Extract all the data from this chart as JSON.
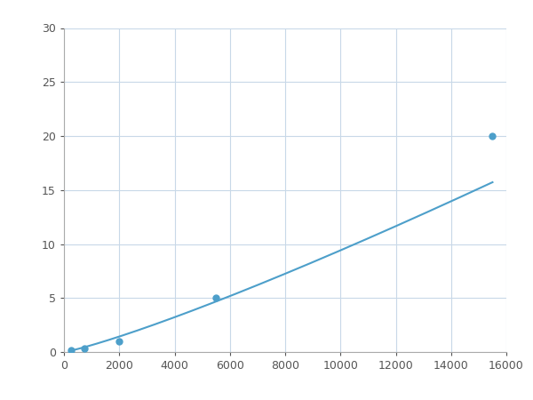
{
  "x_points": [
    250,
    750,
    2000,
    5500,
    15500
  ],
  "y_points": [
    0.2,
    0.3,
    1.0,
    5.0,
    20.0
  ],
  "line_color": "#4d9fca",
  "marker_color": "#4d9fca",
  "marker_size": 5,
  "line_width": 1.5,
  "xlim": [
    0,
    16000
  ],
  "ylim": [
    0,
    30
  ],
  "xticks": [
    0,
    2000,
    4000,
    6000,
    8000,
    10000,
    12000,
    14000,
    16000
  ],
  "yticks": [
    0,
    5,
    10,
    15,
    20,
    25,
    30
  ],
  "grid_color": "#c8d8e8",
  "background_color": "#ffffff",
  "figsize": [
    6.0,
    4.5
  ],
  "dpi": 100
}
